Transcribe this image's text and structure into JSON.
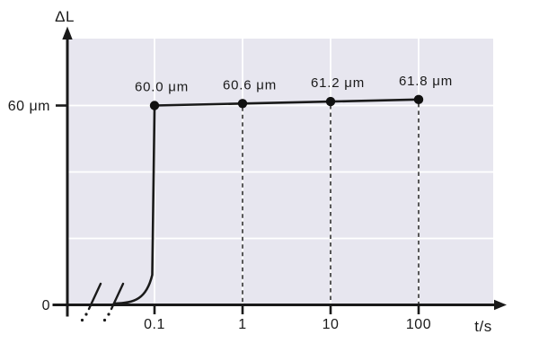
{
  "chart_data": {
    "type": "line",
    "title": "",
    "xlabel": "t/s",
    "ylabel": "ΔL",
    "x_scale": "log",
    "x": [
      0.1,
      1,
      10,
      100
    ],
    "values": [
      60.0,
      60.6,
      61.2,
      61.8
    ],
    "point_labels": [
      "60.0 μm",
      "60.6 μm",
      "61.2 μm",
      "61.8 μm"
    ],
    "x_ticks": [
      "0.1",
      "1",
      "10",
      "100"
    ],
    "x_tick_values": [
      0.1,
      1,
      10,
      100
    ],
    "y_ticks": [
      {
        "value": 0,
        "label": "0"
      },
      {
        "value": 60,
        "label": "60 μm"
      }
    ],
    "y_gridline_values": [
      20,
      40,
      60
    ],
    "ylim": [
      0,
      80
    ],
    "grid": "on",
    "legend": "none",
    "axis_break_on_x": true,
    "colors": {
      "plot_bg": "#e7e6ef",
      "grid": "#ffffff",
      "line": "#1a1a1a",
      "point": "#111111",
      "text": "#1a1a1a"
    }
  }
}
